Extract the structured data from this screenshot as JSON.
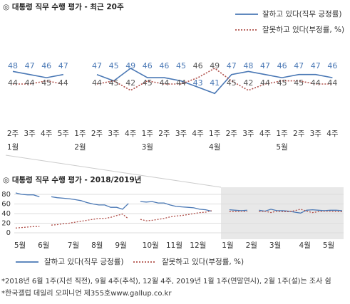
{
  "chart_data": [
    {
      "type": "line",
      "title": "◎  대통령 직무 수행 평가 - 최근 20주",
      "categories": [
        "2주",
        "3주",
        "4주",
        "5주",
        "1주",
        "2주",
        "3주",
        "4주",
        "1주",
        "2주",
        "3주",
        "4주",
        "1주",
        "2주",
        "3주",
        "4주",
        "1주",
        "2주",
        "3주",
        "4주"
      ],
      "months": [
        "1월",
        null,
        null,
        null,
        "2월",
        null,
        null,
        null,
        "3월",
        null,
        null,
        null,
        "4월",
        null,
        null,
        null,
        "5월",
        null,
        null,
        null
      ],
      "ylim": [
        30,
        65
      ],
      "series": [
        {
          "name": "잘하고 있다(직무 긍정률)",
          "color": "#4a78b5",
          "style": "solid",
          "values": [
            48,
            47,
            46,
            47,
            null,
            47,
            45,
            49,
            46,
            46,
            45,
            43,
            41,
            47,
            48,
            47,
            46,
            47,
            47,
            46
          ]
        },
        {
          "name": "잘못하고 있다(부정률, %)",
          "color": "#b0504a",
          "style": "dotted",
          "values": [
            44,
            44,
            45,
            44,
            null,
            44,
            45,
            42,
            45,
            44,
            44,
            46,
            49,
            45,
            42,
            44,
            45,
            45,
            44,
            44
          ]
        }
      ]
    },
    {
      "type": "line",
      "title": "◎  대통령 직무 수행 평가 - 2018/2019년",
      "categories": [
        "5월",
        null,
        null,
        null,
        "6월",
        null,
        null,
        null,
        null,
        "7월",
        null,
        null,
        null,
        "8월",
        null,
        null,
        null,
        "9월",
        null,
        null,
        null,
        null,
        "10월",
        null,
        null,
        null,
        "11월",
        null,
        null,
        null,
        "12월",
        null,
        null,
        null,
        null,
        "1월",
        null,
        null,
        null,
        "2월",
        null,
        null,
        null,
        "3월",
        null,
        null,
        null,
        null,
        "4월",
        null,
        null,
        null,
        "5월",
        null,
        null,
        null
      ],
      "ylim": [
        0,
        80
      ],
      "yticks": [
        0,
        20,
        40,
        60,
        80
      ],
      "grid": true,
      "series": [
        {
          "name": "잘하고 있다(직무 긍정률)",
          "color": "#4a78b5",
          "style": "solid",
          "values": [
            83,
            80,
            79,
            79,
            75,
            null,
            75,
            73,
            72,
            71,
            69,
            67,
            63,
            60,
            58,
            58,
            53,
            53,
            49,
            61,
            null,
            65,
            64,
            65,
            62,
            62,
            58,
            55,
            54,
            53,
            52,
            49,
            48,
            45,
            null,
            null,
            48,
            47,
            46,
            47,
            null,
            47,
            45,
            49,
            46,
            46,
            45,
            43,
            41,
            47,
            48,
            47,
            46,
            47,
            47,
            46
          ]
        },
        {
          "name": "잘못하고 있다(부정률, %)",
          "color": "#b0504a",
          "style": "dotted",
          "values": [
            10,
            11,
            12,
            13,
            13,
            null,
            16,
            17,
            19,
            20,
            22,
            24,
            26,
            28,
            30,
            30,
            32,
            36,
            39,
            29,
            null,
            28,
            25,
            26,
            28,
            30,
            33,
            35,
            36,
            38,
            40,
            42,
            43,
            46,
            null,
            null,
            44,
            44,
            45,
            44,
            null,
            44,
            45,
            42,
            45,
            44,
            44,
            46,
            49,
            45,
            42,
            44,
            45,
            45,
            44,
            44
          ]
        }
      ]
    }
  ],
  "notes": [
    "*2018년 6월 1주(지선 직전), 9월 4주(추석), 12월 4주, 2019년 1월 1주(연말연시), 2월 1주(설)는 조사 쉼",
    "*한국갤럽 데일리 오피니언 제355호www.gallup.co.kr"
  ]
}
